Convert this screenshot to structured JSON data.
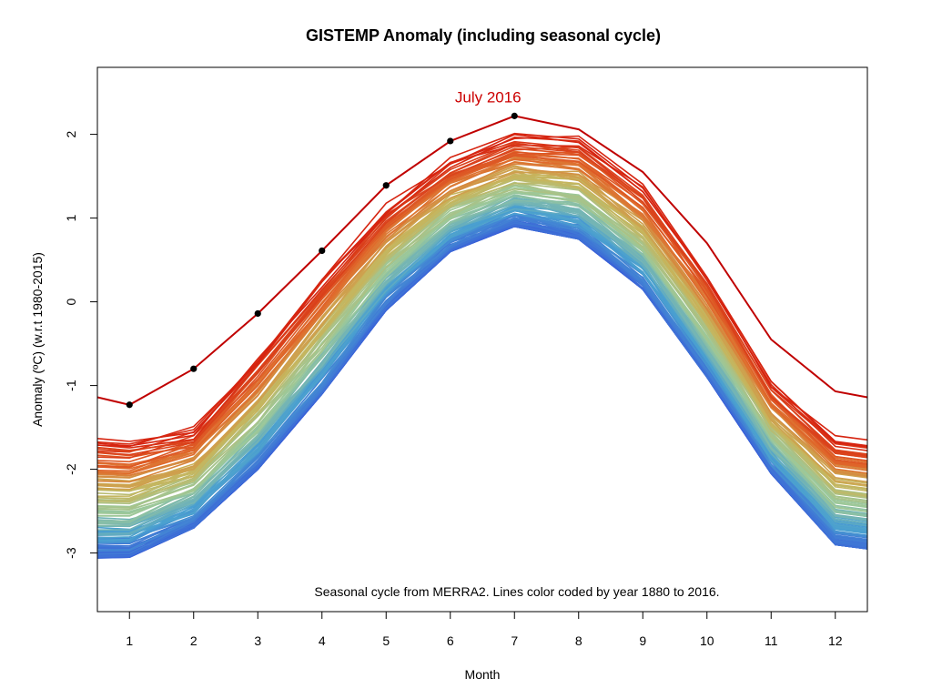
{
  "chart_data": {
    "type": "line",
    "title": "GISTEMP Anomaly (including seasonal cycle)",
    "xlabel": "Month",
    "ylabel": "Anomaly (ºC) (w.r.t 1980-2015)",
    "annotation": "Seasonal cycle from MERRA2. Lines color coded by year 1880 to 2016.",
    "x": [
      1,
      2,
      3,
      4,
      5,
      6,
      7,
      8,
      9,
      10,
      11,
      12
    ],
    "xlim": [
      0.5,
      12.5
    ],
    "ylim": [
      -3.7,
      2.8
    ],
    "x_ticks": [
      1,
      2,
      3,
      4,
      5,
      6,
      7,
      8,
      9,
      10,
      11,
      12
    ],
    "y_ticks": [
      -3,
      -2,
      -1,
      0,
      1,
      2
    ],
    "year_range": [
      1880,
      2016
    ],
    "color_scale": [
      "#3a62d8",
      "#4aa0d0",
      "#9cc89a",
      "#c8b45a",
      "#e06a2c",
      "#d62410"
    ],
    "envelope": {
      "min": [
        -3.05,
        -2.7,
        -2.0,
        -1.1,
        -0.1,
        0.6,
        0.9,
        0.75,
        0.15,
        -0.9,
        -2.05,
        -2.9
      ],
      "max": [
        -1.6,
        -1.45,
        -0.6,
        0.35,
        1.2,
        1.75,
        2.05,
        2.0,
        1.45,
        0.4,
        -0.9,
        -1.55
      ]
    },
    "highlight_series": {
      "label": "July 2016",
      "color": "#c00000",
      "values": [
        -1.23,
        -0.8,
        -0.14,
        0.61,
        1.39,
        1.92,
        2.22,
        2.06,
        1.55,
        0.7,
        -0.45,
        -1.07
      ],
      "marked_points": 7
    },
    "partial_series": {
      "color": "#c00000",
      "x": [
        0.5,
        1
      ],
      "values": [
        -1.14,
        -1.23
      ],
      "end_x": [
        12,
        12.5
      ],
      "end_values": [
        -1.07,
        -1.14
      ]
    },
    "grid": false,
    "legend": "none"
  }
}
